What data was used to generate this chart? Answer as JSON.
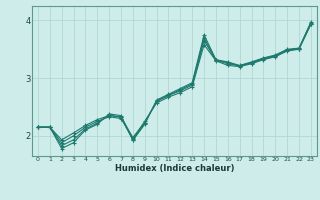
{
  "title": "",
  "xlabel": "Humidex (Indice chaleur)",
  "bg_color": "#ceecea",
  "line_color": "#1e7a6e",
  "grid_color": "#aad4d0",
  "spine_color": "#5a9a90",
  "xlim": [
    -0.5,
    23.5
  ],
  "ylim": [
    1.65,
    4.25
  ],
  "xticks": [
    0,
    1,
    2,
    3,
    4,
    5,
    6,
    7,
    8,
    9,
    10,
    11,
    12,
    13,
    14,
    15,
    16,
    17,
    18,
    19,
    20,
    21,
    22,
    23
  ],
  "yticks": [
    2,
    3,
    4
  ],
  "line1_x": [
    0,
    1,
    2,
    3,
    4,
    5,
    6,
    7,
    8,
    9,
    10,
    11,
    12,
    13,
    14,
    15,
    16,
    17,
    18,
    19,
    20,
    21,
    22,
    23
  ],
  "line1_y": [
    2.15,
    2.15,
    1.78,
    1.88,
    2.1,
    2.2,
    2.38,
    2.35,
    1.92,
    2.2,
    2.62,
    2.72,
    2.82,
    2.92,
    3.75,
    3.32,
    3.28,
    3.22,
    3.28,
    3.35,
    3.4,
    3.5,
    3.52,
    3.97
  ],
  "line2_x": [
    0,
    1,
    2,
    3,
    4,
    5,
    6,
    7,
    8,
    9,
    10,
    11,
    12,
    13,
    14,
    15,
    16,
    17,
    18,
    19,
    20,
    21,
    22,
    23
  ],
  "line2_y": [
    2.15,
    2.15,
    1.88,
    2.0,
    2.15,
    2.25,
    2.33,
    2.3,
    1.95,
    2.25,
    2.57,
    2.67,
    2.75,
    2.85,
    3.58,
    3.3,
    3.22,
    3.2,
    3.25,
    3.32,
    3.37,
    3.47,
    3.5,
    3.93
  ],
  "line3_x": [
    0,
    1,
    2,
    3,
    4,
    5,
    6,
    7,
    8,
    9,
    10,
    11,
    12,
    13,
    14,
    15,
    16,
    17,
    18,
    19,
    20,
    21,
    22,
    23
  ],
  "line3_y": [
    2.15,
    2.15,
    1.93,
    2.05,
    2.18,
    2.28,
    2.35,
    2.33,
    1.97,
    2.23,
    2.6,
    2.7,
    2.78,
    2.88,
    3.65,
    3.31,
    3.25,
    3.21,
    3.26,
    3.33,
    3.38,
    3.48,
    3.51,
    3.94
  ],
  "line4_x": [
    0,
    1,
    2,
    3,
    4,
    5,
    6,
    7,
    8,
    9,
    10,
    11,
    12,
    13,
    14,
    15,
    16,
    17,
    18,
    19,
    20,
    21,
    22,
    23
  ],
  "line4_y": [
    2.15,
    2.15,
    1.83,
    1.93,
    2.12,
    2.22,
    2.36,
    2.32,
    1.93,
    2.22,
    2.6,
    2.7,
    2.8,
    2.9,
    3.7,
    3.31,
    3.27,
    3.21,
    3.27,
    3.34,
    3.39,
    3.49,
    3.51,
    3.96
  ]
}
